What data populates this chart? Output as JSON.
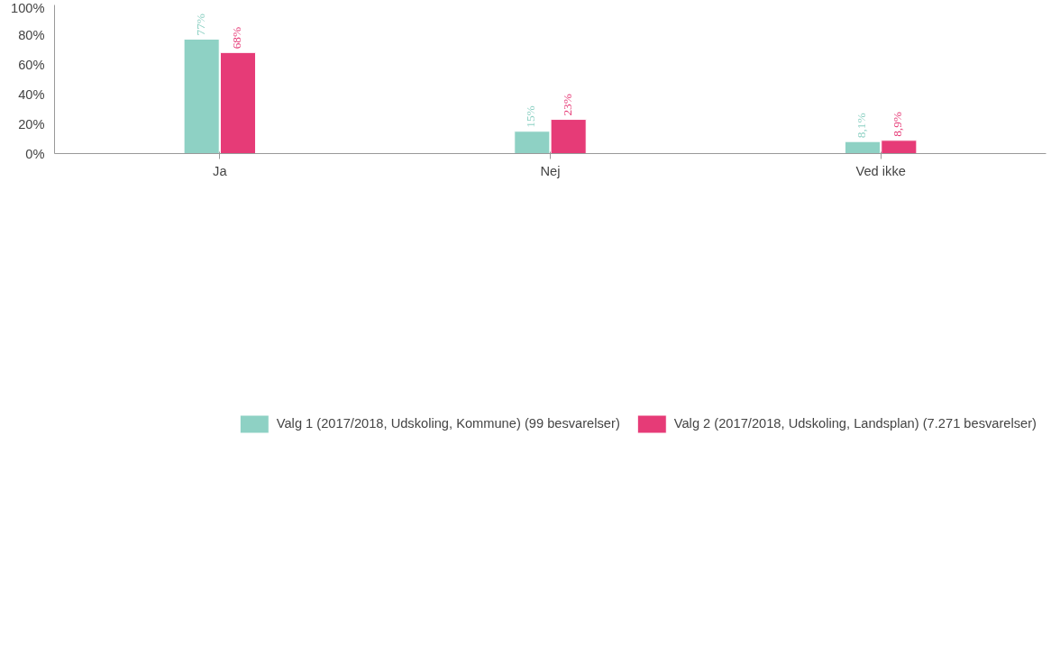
{
  "chart_data": {
    "type": "bar",
    "categories": [
      "Ja",
      "Nej",
      "Ved ikke"
    ],
    "series": [
      {
        "name": "Valg 1 (2017/2018, Udskoling, Kommune) (99 besvarelser)",
        "color": "#8ed1c4",
        "values": [
          77,
          15,
          8.1
        ],
        "value_labels": [
          "77%",
          "15%",
          "8,1%"
        ]
      },
      {
        "name": "Valg 2 (2017/2018, Udskoling, Landsplan) (7.271 besvarelser)",
        "color": "#e63b77",
        "values": [
          68,
          23,
          8.9
        ],
        "value_labels": [
          "68%",
          "23%",
          "8,9%"
        ]
      }
    ],
    "ylim": [
      0,
      100
    ],
    "yticks": [
      {
        "value": 0,
        "label": "0%"
      },
      {
        "value": 20,
        "label": "20%"
      },
      {
        "value": 40,
        "label": "40%"
      },
      {
        "value": 60,
        "label": "60%"
      },
      {
        "value": 80,
        "label": "80%"
      },
      {
        "value": 100,
        "label": "100%"
      }
    ],
    "grid": false,
    "legend": "bottom"
  }
}
